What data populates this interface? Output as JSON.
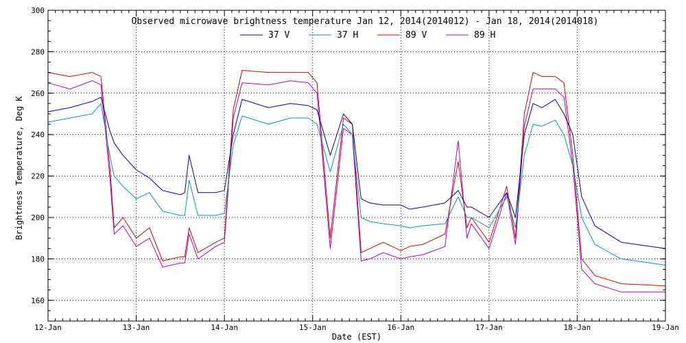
{
  "chart_data": {
    "type": "line",
    "title": "Observed microwave brightness temperature Jan 12, 2014(2014012) - Jan 18, 2014(2014018)",
    "xlabel": "Date (EST)",
    "ylabel": "Brightness Temperature, Deg K",
    "ylim": [
      150,
      300
    ],
    "xlim": [
      0,
      7
    ],
    "x_tick_labels": [
      "12-Jan",
      "13-Jan",
      "14-Jan",
      "15-Jan",
      "16-Jan",
      "17-Jan",
      "18-Jan",
      "19-Jan"
    ],
    "y_ticks": [
      160,
      180,
      200,
      220,
      240,
      260,
      280,
      300
    ],
    "grid": true,
    "legend": "top-center",
    "x": [
      0,
      0.25,
      0.5,
      0.6,
      0.7,
      0.75,
      0.85,
      1.0,
      1.15,
      1.3,
      1.5,
      1.55,
      1.6,
      1.7,
      1.9,
      2.0,
      2.1,
      2.2,
      2.5,
      2.75,
      2.95,
      3.05,
      3.2,
      3.35,
      3.45,
      3.55,
      3.65,
      3.8,
      4.0,
      4.1,
      4.25,
      4.5,
      4.65,
      4.75,
      4.8,
      5.0,
      5.2,
      5.3,
      5.4,
      5.5,
      5.6,
      5.75,
      5.85,
      5.95,
      6.05,
      6.2,
      6.5,
      7.0
    ],
    "series": [
      {
        "name": "37 V",
        "color": "#0000b4",
        "values": [
          251,
          253,
          256,
          258,
          242,
          236,
          230,
          223,
          219,
          213,
          211,
          212,
          230,
          212,
          212,
          213,
          240,
          257,
          253,
          255,
          254,
          252,
          230,
          250,
          245,
          209,
          207,
          206,
          206,
          204,
          205,
          207,
          213,
          205,
          205,
          200,
          212,
          200,
          240,
          255,
          253,
          257,
          250,
          240,
          210,
          196,
          188,
          185
        ]
      },
      {
        "name": "37 H",
        "color": "#0096c8",
        "values": [
          246,
          248,
          250,
          255,
          230,
          220,
          215,
          209,
          212,
          203,
          201,
          201,
          218,
          201,
          201,
          202,
          235,
          249,
          245,
          248,
          248,
          245,
          222,
          245,
          240,
          200,
          198,
          197,
          196,
          195,
          196,
          197,
          210,
          200,
          200,
          195,
          210,
          195,
          230,
          245,
          244,
          247,
          240,
          225,
          200,
          187,
          180,
          177
        ]
      },
      {
        "name": "89 V",
        "color": "#dc0000",
        "values": [
          270,
          268,
          270,
          268,
          225,
          195,
          200,
          190,
          195,
          179,
          181,
          181,
          195,
          183,
          188,
          190,
          252,
          271,
          270,
          270,
          270,
          265,
          190,
          248,
          245,
          183,
          185,
          188,
          184,
          186,
          187,
          192,
          227,
          195,
          200,
          188,
          215,
          190,
          250,
          270,
          268,
          268,
          265,
          230,
          180,
          172,
          168,
          167
        ]
      },
      {
        "name": "89 H",
        "color": "#b400c8",
        "values": [
          265,
          262,
          266,
          264,
          220,
          192,
          196,
          186,
          190,
          176,
          178,
          178,
          192,
          180,
          186,
          188,
          248,
          265,
          264,
          266,
          265,
          260,
          185,
          243,
          240,
          179,
          180,
          183,
          180,
          181,
          182,
          186,
          237,
          190,
          197,
          185,
          212,
          187,
          244,
          262,
          262,
          262,
          258,
          225,
          175,
          168,
          164,
          164
        ]
      }
    ]
  }
}
